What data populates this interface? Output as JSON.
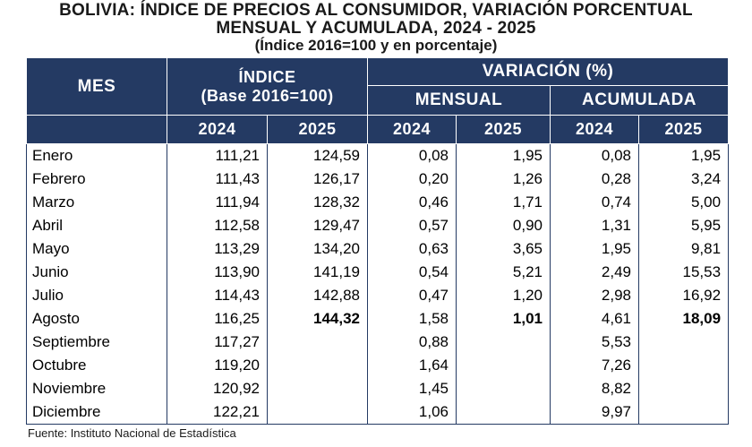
{
  "title": {
    "line1": "BOLIVIA: ÍNDICE DE PRECIOS AL CONSUMIDOR, VARIACIÓN PORCENTUAL",
    "line2": "MENSUAL Y ACUMULADA, 2024 - 2025",
    "line3": "(Índice 2016=100 y en porcentaje)"
  },
  "headers": {
    "mes": "MES",
    "indice": "ÍNDICE",
    "indice_base": "(Base 2016=100)",
    "variacion": "VARIACIÓN (%)",
    "mensual": "MENSUAL",
    "acumulada": "ACUMULADA",
    "years": [
      "2024",
      "2025",
      "2024",
      "2025",
      "2024",
      "2025"
    ]
  },
  "rows": [
    {
      "mes": "Enero",
      "idx24": "111,21",
      "idx25": "124,59",
      "men24": "0,08",
      "men25": "1,95",
      "acu24": "0,08",
      "acu25": "1,95"
    },
    {
      "mes": "Febrero",
      "idx24": "111,43",
      "idx25": "126,17",
      "men24": "0,20",
      "men25": "1,26",
      "acu24": "0,28",
      "acu25": "3,24"
    },
    {
      "mes": "Marzo",
      "idx24": "111,94",
      "idx25": "128,32",
      "men24": "0,46",
      "men25": "1,71",
      "acu24": "0,74",
      "acu25": "5,00"
    },
    {
      "mes": "Abril",
      "idx24": "112,58",
      "idx25": "129,47",
      "men24": "0,57",
      "men25": "0,90",
      "acu24": "1,31",
      "acu25": "5,95"
    },
    {
      "mes": "Mayo",
      "idx24": "113,29",
      "idx25": "134,20",
      "men24": "0,63",
      "men25": "3,65",
      "acu24": "1,95",
      "acu25": "9,81"
    },
    {
      "mes": "Junio",
      "idx24": "113,90",
      "idx25": "141,19",
      "men24": "0,54",
      "men25": "5,21",
      "acu24": "2,49",
      "acu25": "15,53"
    },
    {
      "mes": "Julio",
      "idx24": "114,43",
      "idx25": "142,88",
      "men24": "0,47",
      "men25": "1,20",
      "acu24": "2,98",
      "acu25": "16,92"
    },
    {
      "mes": "Agosto",
      "idx24": "116,25",
      "idx25": "144,32",
      "men24": "1,58",
      "men25": "1,01",
      "acu24": "4,61",
      "acu25": "18,09"
    },
    {
      "mes": "Septiembre",
      "idx24": "117,27",
      "idx25": "",
      "men24": "0,88",
      "men25": "",
      "acu24": "5,53",
      "acu25": ""
    },
    {
      "mes": "Octubre",
      "idx24": "119,20",
      "idx25": "",
      "men24": "1,64",
      "men25": "",
      "acu24": "7,26",
      "acu25": ""
    },
    {
      "mes": "Noviembre",
      "idx24": "120,92",
      "idx25": "",
      "men24": "1,45",
      "men25": "",
      "acu24": "8,82",
      "acu25": ""
    },
    {
      "mes": "Diciembre",
      "idx24": "122,21",
      "idx25": "",
      "men24": "1,06",
      "men25": "",
      "acu24": "9,97",
      "acu25": ""
    }
  ],
  "highlight_row": "Agosto",
  "footer": "Fuente: Instituto Nacional de Estadística",
  "colors": {
    "header_bg": "#243a63",
    "header_text": "#ffffff"
  }
}
